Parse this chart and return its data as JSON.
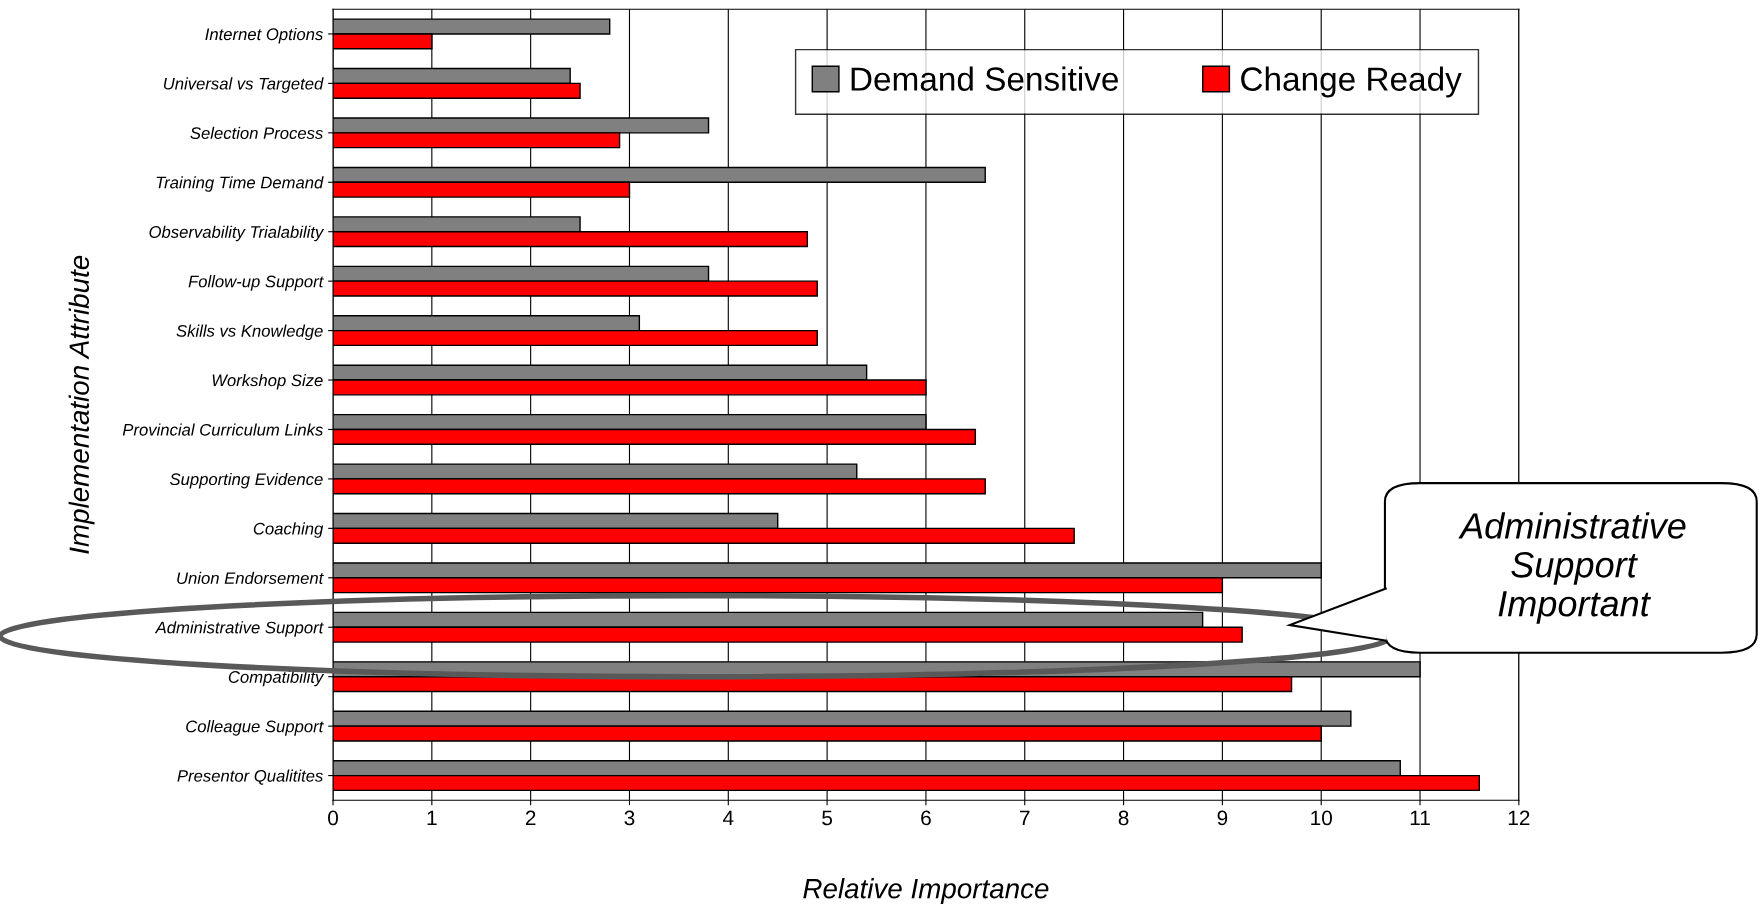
{
  "chart_data": {
    "type": "bar",
    "orientation": "horizontal",
    "xlabel": "Relative Importance",
    "ylabel": "Implementation Attribute",
    "categories": [
      "Internet Options",
      "Universal vs Targeted",
      "Selection Process",
      "Training Time Demand",
      "Observability Trialability",
      "Follow-up Support",
      "Skills vs Knowledge",
      "Workshop Size",
      "Provincial Curriculum Links",
      "Supporting Evidence",
      "Coaching",
      "Union Endorsement",
      "Administrative Support",
      "Compatibility",
      "Colleague Support",
      "Presentor Qualitites"
    ],
    "series": [
      {
        "name": "Demand Sensitive",
        "color": "#808080",
        "values": [
          2.8,
          2.4,
          3.8,
          6.6,
          2.5,
          3.8,
          3.1,
          5.4,
          6.0,
          5.3,
          4.5,
          10.0,
          8.8,
          11.0,
          10.3,
          10.8
        ]
      },
      {
        "name": "Change Ready",
        "color": "#ff0000",
        "values": [
          1.0,
          2.5,
          2.9,
          3.0,
          4.8,
          4.9,
          4.9,
          6.0,
          6.5,
          6.6,
          7.5,
          9.0,
          9.2,
          9.7,
          10.0,
          11.6
        ]
      }
    ],
    "xlim": [
      0,
      12
    ],
    "xticks": [
      0,
      1,
      2,
      3,
      4,
      5,
      6,
      7,
      8,
      9,
      10,
      11,
      12
    ],
    "grid": "x",
    "legend": "top right",
    "annotations": [
      "Administrative\nSupport\nImportant"
    ]
  }
}
